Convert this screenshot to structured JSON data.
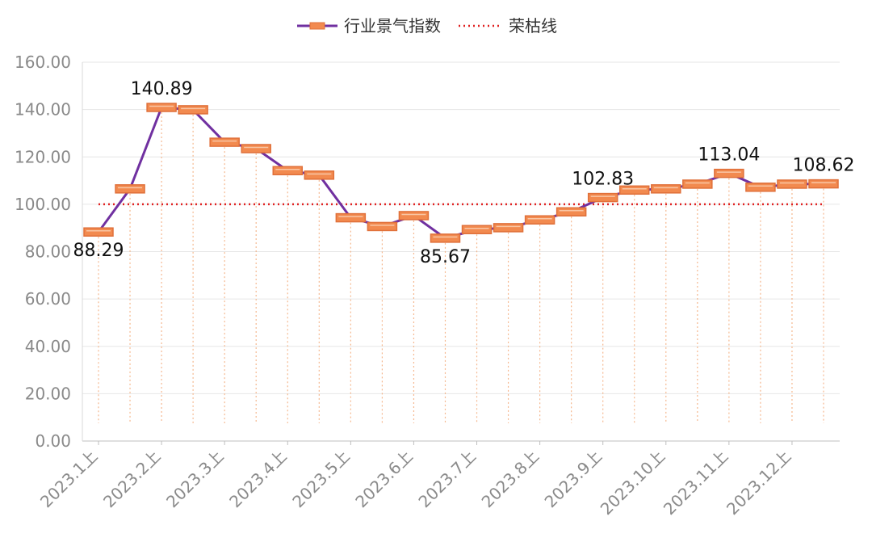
{
  "chart_data": {
    "type": "line",
    "categories": [
      "2023.1上",
      "2023.1下",
      "2023.2上",
      "2023.2下",
      "2023.3上",
      "2023.3下",
      "2023.4上",
      "2023.4下",
      "2023.5上",
      "2023.5下",
      "2023.6上",
      "2023.6下",
      "2023.7上",
      "2023.7下",
      "2023.8上",
      "2023.8下",
      "2023.9上",
      "2023.9下",
      "2023.10上",
      "2023.10下",
      "2023.11上",
      "2023.11下",
      "2023.12上",
      "2023.12下"
    ],
    "x_tick_labels": [
      "2023.1上",
      "2023.2上",
      "2023.3上",
      "2023.4上",
      "2023.5上",
      "2023.6上",
      "2023.7上",
      "2023.8上",
      "2023.9上",
      "2023.10上",
      "2023.11上",
      "2023.12上"
    ],
    "y_tick_labels": [
      "0.00",
      "20.00",
      "40.00",
      "60.00",
      "80.00",
      "100.00",
      "120.00",
      "140.00",
      "160.00"
    ],
    "ylim": [
      0,
      160
    ],
    "grid": true,
    "legend_position": "top-center",
    "series": [
      {
        "name": "行业景气指数",
        "color": "#7030a0",
        "marker_color": "#f28a4f",
        "values": [
          88.29,
          106.5,
          140.89,
          139.9,
          126.2,
          123.5,
          114.2,
          112.3,
          94.3,
          90.6,
          95.2,
          85.67,
          89.3,
          90.1,
          93.4,
          96.8,
          102.83,
          106.0,
          106.5,
          108.5,
          113.04,
          107.2,
          108.5,
          108.62
        ]
      },
      {
        "name": "荣枯线",
        "color": "#e02020",
        "style": "dotted",
        "values": [
          100,
          100,
          100,
          100,
          100,
          100,
          100,
          100,
          100,
          100,
          100,
          100,
          100,
          100,
          100,
          100,
          100,
          100,
          100,
          100,
          100,
          100,
          100,
          100
        ]
      }
    ],
    "annotations": [
      {
        "index": 0,
        "text": "88.29",
        "placement": "below"
      },
      {
        "index": 2,
        "text": "140.89",
        "placement": "above"
      },
      {
        "index": 11,
        "text": "85.67",
        "placement": "below"
      },
      {
        "index": 16,
        "text": "102.83",
        "placement": "above"
      },
      {
        "index": 20,
        "text": "113.04",
        "placement": "above"
      },
      {
        "index": 23,
        "text": "108.62",
        "placement": "above"
      }
    ]
  }
}
